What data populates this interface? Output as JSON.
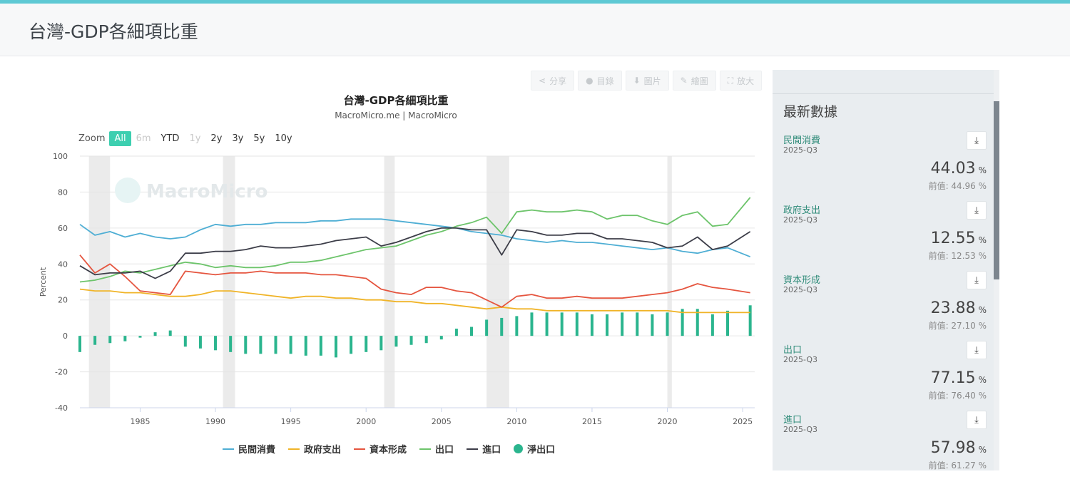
{
  "page": {
    "title": "台灣-GDP各細項比重"
  },
  "toolbar": [
    {
      "label": "分享",
      "icon": "share-icon"
    },
    {
      "label": "目錄",
      "icon": "catalog-icon"
    },
    {
      "label": "圖片",
      "icon": "download-icon"
    },
    {
      "label": "繪圖",
      "icon": "pencil-icon"
    },
    {
      "label": "放大",
      "icon": "expand-icon"
    }
  ],
  "zoom": {
    "label": "Zoom",
    "options": [
      "All",
      "6m",
      "YTD",
      "1y",
      "2y",
      "3y",
      "5y",
      "10y"
    ],
    "active": "All",
    "disabled": [
      "6m",
      "1y"
    ]
  },
  "watermark": "MacroMicro",
  "panel": {
    "title": "最新數據",
    "items": [
      {
        "name": "民間消費",
        "period": "2025-Q3",
        "value": "44.03",
        "unit": "%",
        "prev": "前值: 44.96 %"
      },
      {
        "name": "政府支出",
        "period": "2025-Q3",
        "value": "12.55",
        "unit": "%",
        "prev": "前值: 12.53 %"
      },
      {
        "name": "資本形成",
        "period": "2025-Q3",
        "value": "23.88",
        "unit": "%",
        "prev": "前值: 27.10 %"
      },
      {
        "name": "出口",
        "period": "2025-Q3",
        "value": "77.15",
        "unit": "%",
        "prev": "前值: 76.40 %"
      },
      {
        "name": "進口",
        "period": "2025-Q3",
        "value": "57.98",
        "unit": "%",
        "prev": "前值: 61.27 %"
      }
    ]
  },
  "chart_data": {
    "type": "line",
    "title": "台灣-GDP各細項比重",
    "subtitle": "MacroMicro.me | MacroMicro",
    "ylabel": "Percent",
    "ylim": [
      -40,
      100
    ],
    "yticks": [
      100,
      80,
      60,
      40,
      20,
      0,
      -20,
      -40
    ],
    "xlim": [
      1981,
      2025.8
    ],
    "xticks": [
      1985,
      1990,
      1995,
      2000,
      2005,
      2010,
      2015,
      2020,
      2025
    ],
    "recessions": [
      [
        1981.6,
        1983.0
      ],
      [
        1990.5,
        1991.3
      ],
      [
        2001.2,
        2001.9
      ],
      [
        2008.0,
        2009.5
      ],
      [
        2020.0,
        2020.3
      ]
    ],
    "grid": true,
    "legend_position": "bottom",
    "series": [
      {
        "name": "民間消費",
        "color": "#4eaed4",
        "type": "line",
        "x": [
          1981,
          1982,
          1983,
          1984,
          1985,
          1986,
          1987,
          1988,
          1989,
          1990,
          1991,
          1992,
          1993,
          1994,
          1995,
          1996,
          1997,
          1998,
          1999,
          2000,
          2001,
          2002,
          2003,
          2004,
          2005,
          2006,
          2007,
          2008,
          2009,
          2010,
          2011,
          2012,
          2013,
          2014,
          2015,
          2016,
          2017,
          2018,
          2019,
          2020,
          2021,
          2022,
          2023,
          2024,
          2025.5
        ],
        "y": [
          62,
          56,
          58,
          55,
          57,
          55,
          54,
          55,
          59,
          62,
          61,
          62,
          62,
          63,
          63,
          63,
          64,
          64,
          65,
          65,
          65,
          64,
          63,
          62,
          61,
          60,
          58,
          57,
          56,
          54,
          53,
          52,
          53,
          52,
          52,
          51,
          50,
          49,
          48,
          49,
          47,
          46,
          48,
          49,
          44
        ]
      },
      {
        "name": "政府支出",
        "color": "#f0b428",
        "type": "line",
        "x": [
          1981,
          1982,
          1983,
          1984,
          1985,
          1986,
          1987,
          1988,
          1989,
          1990,
          1991,
          1992,
          1993,
          1994,
          1995,
          1996,
          1997,
          1998,
          1999,
          2000,
          2001,
          2002,
          2003,
          2004,
          2005,
          2006,
          2007,
          2008,
          2009,
          2010,
          2011,
          2012,
          2013,
          2014,
          2015,
          2016,
          2017,
          2018,
          2019,
          2020,
          2021,
          2022,
          2023,
          2024,
          2025.5
        ],
        "y": [
          26,
          25,
          25,
          24,
          24,
          23,
          22,
          22,
          23,
          25,
          25,
          24,
          23,
          22,
          21,
          22,
          22,
          21,
          21,
          20,
          20,
          19,
          19,
          18,
          18,
          17,
          16,
          15,
          16,
          15,
          15,
          14,
          14,
          14,
          14,
          14,
          14,
          14,
          14,
          14,
          13,
          13,
          13,
          13,
          13
        ]
      },
      {
        "name": "資本形成",
        "color": "#e5553f",
        "type": "line",
        "x": [
          1981,
          1982,
          1983,
          1984,
          1985,
          1986,
          1987,
          1988,
          1989,
          1990,
          1991,
          1992,
          1993,
          1994,
          1995,
          1996,
          1997,
          1998,
          1999,
          2000,
          2001,
          2002,
          2003,
          2004,
          2005,
          2006,
          2007,
          2008,
          2009,
          2010,
          2011,
          2012,
          2013,
          2014,
          2015,
          2016,
          2017,
          2018,
          2019,
          2020,
          2021,
          2022,
          2023,
          2024,
          2025.5
        ],
        "y": [
          45,
          35,
          40,
          33,
          25,
          24,
          23,
          36,
          35,
          34,
          35,
          35,
          36,
          35,
          35,
          35,
          34,
          34,
          33,
          32,
          26,
          24,
          23,
          27,
          27,
          25,
          24,
          20,
          16,
          22,
          23,
          21,
          21,
          22,
          21,
          21,
          21,
          22,
          23,
          24,
          26,
          29,
          27,
          26,
          24
        ]
      },
      {
        "name": "出口",
        "color": "#6dc46b",
        "type": "line",
        "x": [
          1981,
          1982,
          1983,
          1984,
          1985,
          1986,
          1987,
          1988,
          1989,
          1990,
          1991,
          1992,
          1993,
          1994,
          1995,
          1996,
          1997,
          1998,
          1999,
          2000,
          2001,
          2002,
          2003,
          2004,
          2005,
          2006,
          2007,
          2008,
          2009,
          2010,
          2011,
          2012,
          2013,
          2014,
          2015,
          2016,
          2017,
          2018,
          2019,
          2020,
          2021,
          2022,
          2023,
          2024,
          2025.5
        ],
        "y": [
          30,
          31,
          33,
          36,
          35,
          37,
          39,
          41,
          40,
          38,
          39,
          38,
          38,
          39,
          41,
          41,
          42,
          44,
          46,
          48,
          49,
          50,
          53,
          56,
          58,
          61,
          63,
          66,
          57,
          69,
          70,
          69,
          69,
          70,
          69,
          65,
          67,
          67,
          64,
          62,
          67,
          69,
          61,
          62,
          77
        ]
      },
      {
        "name": "進口",
        "color": "#3c3d48",
        "type": "line",
        "x": [
          1981,
          1982,
          1983,
          1984,
          1985,
          1986,
          1987,
          1988,
          1989,
          1990,
          1991,
          1992,
          1993,
          1994,
          1995,
          1996,
          1997,
          1998,
          1999,
          2000,
          2001,
          2002,
          2003,
          2004,
          2005,
          2006,
          2007,
          2008,
          2009,
          2010,
          2011,
          2012,
          2013,
          2014,
          2015,
          2016,
          2017,
          2018,
          2019,
          2020,
          2021,
          2022,
          2023,
          2024,
          2025.5
        ],
        "y": [
          39,
          34,
          35,
          35,
          36,
          32,
          36,
          46,
          46,
          47,
          47,
          48,
          50,
          49,
          49,
          50,
          51,
          53,
          54,
          55,
          50,
          52,
          55,
          58,
          60,
          60,
          59,
          59,
          45,
          59,
          58,
          56,
          56,
          57,
          57,
          54,
          54,
          53,
          52,
          49,
          50,
          55,
          48,
          50,
          58
        ]
      },
      {
        "name": "淨出口",
        "color": "#2bb58e",
        "type": "column",
        "x": [
          1981,
          1982,
          1983,
          1984,
          1985,
          1986,
          1987,
          1988,
          1989,
          1990,
          1991,
          1992,
          1993,
          1994,
          1995,
          1996,
          1997,
          1998,
          1999,
          2000,
          2001,
          2002,
          2003,
          2004,
          2005,
          2006,
          2007,
          2008,
          2009,
          2010,
          2011,
          2012,
          2013,
          2014,
          2015,
          2016,
          2017,
          2018,
          2019,
          2020,
          2021,
          2022,
          2023,
          2024,
          2025.5
        ],
        "y": [
          -9,
          -5,
          -4,
          -3,
          -1,
          2,
          3,
          -6,
          -7,
          -8,
          -9,
          -10,
          -10,
          -10,
          -10,
          -11,
          -11,
          -12,
          -10,
          -9,
          -8,
          -6,
          -5,
          -4,
          -2,
          4,
          5,
          9,
          10,
          11,
          13,
          13,
          13,
          13,
          12,
          12,
          13,
          13,
          12,
          13,
          15,
          15,
          12,
          14,
          17
        ]
      }
    ]
  }
}
